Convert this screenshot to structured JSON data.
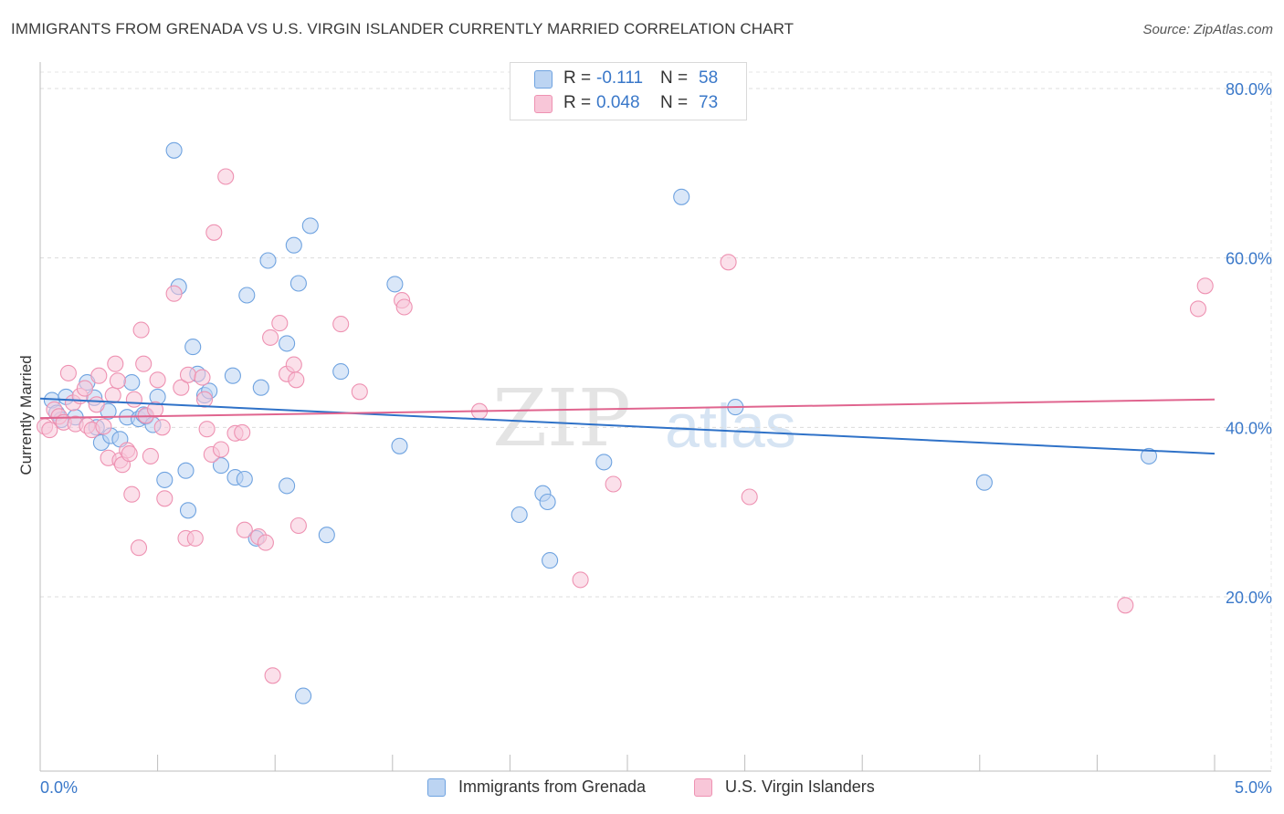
{
  "title": "IMMIGRANTS FROM GRENADA VS U.S. VIRGIN ISLANDER CURRENTLY MARRIED CORRELATION CHART",
  "source": "Source: ZipAtlas.com",
  "watermark": {
    "zip": "ZIP",
    "atlas": "atlas"
  },
  "legend": {
    "rows": [
      {
        "r_label": "R =",
        "r_value": "-0.111",
        "n_label": "N =",
        "n_value": "58"
      },
      {
        "r_label": "R =",
        "r_value": "0.048",
        "n_label": "N =",
        "n_value": "73"
      }
    ]
  },
  "chart_data": {
    "type": "scatter",
    "ylabel": "Currently Married",
    "xlim": [
      0,
      5
    ],
    "ylim": [
      0,
      80
    ],
    "x_tick_labels": [
      "0.0%",
      "5.0%"
    ],
    "y_tick_labels": [
      "20.0%",
      "40.0%",
      "60.0%",
      "80.0%"
    ],
    "y_ticks": [
      20,
      40,
      60,
      80
    ],
    "grid": true,
    "legend_position": "top-center",
    "series": [
      {
        "name": "Immigrants from Grenada",
        "color": "#6fa3e0",
        "fill": "#bcd4f2",
        "line_color": "#2f72c8",
        "trend": [
          [
            0,
            43.4
          ],
          [
            5,
            36.9
          ]
        ],
        "points": [
          [
            0.05,
            43.2
          ],
          [
            0.07,
            41.7
          ],
          [
            0.09,
            40.9
          ],
          [
            0.11,
            43.6
          ],
          [
            0.15,
            41.2
          ],
          [
            0.2,
            45.3
          ],
          [
            0.23,
            43.5
          ],
          [
            0.24,
            40.0
          ],
          [
            0.26,
            38.2
          ],
          [
            0.29,
            41.9
          ],
          [
            0.3,
            39.0
          ],
          [
            0.34,
            38.6
          ],
          [
            0.37,
            41.2
          ],
          [
            0.39,
            45.3
          ],
          [
            0.42,
            41.0
          ],
          [
            0.44,
            41.5
          ],
          [
            0.45,
            41.3
          ],
          [
            0.48,
            40.3
          ],
          [
            0.5,
            43.6
          ],
          [
            0.53,
            33.8
          ],
          [
            0.57,
            72.7
          ],
          [
            0.59,
            56.6
          ],
          [
            0.62,
            34.9
          ],
          [
            0.63,
            30.2
          ],
          [
            0.65,
            49.5
          ],
          [
            0.67,
            46.3
          ],
          [
            0.7,
            43.8
          ],
          [
            0.72,
            44.3
          ],
          [
            0.77,
            35.5
          ],
          [
            0.82,
            46.1
          ],
          [
            0.83,
            34.1
          ],
          [
            0.87,
            33.9
          ],
          [
            0.88,
            55.6
          ],
          [
            0.92,
            26.9
          ],
          [
            0.94,
            44.7
          ],
          [
            0.97,
            59.7
          ],
          [
            1.05,
            49.9
          ],
          [
            1.05,
            33.1
          ],
          [
            1.08,
            61.5
          ],
          [
            1.1,
            57.0
          ],
          [
            1.12,
            8.3
          ],
          [
            1.15,
            63.8
          ],
          [
            1.22,
            27.3
          ],
          [
            1.28,
            46.6
          ],
          [
            1.51,
            56.9
          ],
          [
            1.53,
            37.8
          ],
          [
            2.04,
            29.7
          ],
          [
            2.14,
            32.2
          ],
          [
            2.16,
            31.2
          ],
          [
            2.17,
            24.3
          ],
          [
            2.4,
            35.9
          ],
          [
            2.73,
            67.2
          ],
          [
            2.96,
            42.4
          ],
          [
            4.02,
            33.5
          ],
          [
            4.72,
            36.6
          ]
        ]
      },
      {
        "name": "U.S. Virgin Islanders",
        "color": "#ee92b2",
        "fill": "#f8c6d8",
        "line_color": "#e0658f",
        "trend": [
          [
            0,
            41.1
          ],
          [
            5,
            43.3
          ]
        ],
        "points": [
          [
            0.02,
            40.1
          ],
          [
            0.04,
            39.7
          ],
          [
            0.06,
            42.1
          ],
          [
            0.08,
            41.3
          ],
          [
            0.1,
            40.6
          ],
          [
            0.12,
            46.4
          ],
          [
            0.14,
            42.9
          ],
          [
            0.15,
            40.4
          ],
          [
            0.17,
            43.7
          ],
          [
            0.19,
            44.6
          ],
          [
            0.2,
            40.2
          ],
          [
            0.22,
            39.7
          ],
          [
            0.24,
            42.7
          ],
          [
            0.25,
            46.1
          ],
          [
            0.27,
            40.1
          ],
          [
            0.29,
            36.4
          ],
          [
            0.31,
            43.8
          ],
          [
            0.32,
            47.5
          ],
          [
            0.33,
            45.5
          ],
          [
            0.34,
            36.1
          ],
          [
            0.35,
            35.6
          ],
          [
            0.37,
            37.3
          ],
          [
            0.38,
            36.9
          ],
          [
            0.39,
            32.1
          ],
          [
            0.4,
            43.3
          ],
          [
            0.42,
            25.8
          ],
          [
            0.43,
            51.5
          ],
          [
            0.44,
            47.5
          ],
          [
            0.45,
            41.4
          ],
          [
            0.47,
            36.6
          ],
          [
            0.49,
            42.1
          ],
          [
            0.5,
            45.6
          ],
          [
            0.52,
            40.0
          ],
          [
            0.53,
            31.6
          ],
          [
            0.57,
            55.8
          ],
          [
            0.6,
            44.7
          ],
          [
            0.62,
            26.9
          ],
          [
            0.63,
            46.2
          ],
          [
            0.66,
            26.9
          ],
          [
            0.69,
            45.9
          ],
          [
            0.7,
            43.3
          ],
          [
            0.71,
            39.8
          ],
          [
            0.73,
            36.8
          ],
          [
            0.74,
            63.0
          ],
          [
            0.77,
            37.4
          ],
          [
            0.79,
            69.6
          ],
          [
            0.83,
            39.3
          ],
          [
            0.86,
            39.4
          ],
          [
            0.87,
            27.9
          ],
          [
            0.93,
            27.1
          ],
          [
            0.96,
            26.4
          ],
          [
            0.98,
            50.6
          ],
          [
            0.99,
            10.7
          ],
          [
            1.02,
            52.3
          ],
          [
            1.05,
            46.3
          ],
          [
            1.08,
            47.4
          ],
          [
            1.09,
            45.6
          ],
          [
            1.1,
            28.4
          ],
          [
            1.28,
            52.2
          ],
          [
            1.36,
            44.2
          ],
          [
            1.54,
            55.0
          ],
          [
            1.55,
            54.2
          ],
          [
            1.87,
            41.9
          ],
          [
            2.3,
            22.0
          ],
          [
            2.44,
            33.3
          ],
          [
            2.93,
            59.5
          ],
          [
            3.02,
            31.8
          ],
          [
            4.62,
            19.0
          ],
          [
            4.93,
            54.0
          ],
          [
            4.96,
            56.7
          ]
        ]
      }
    ]
  }
}
